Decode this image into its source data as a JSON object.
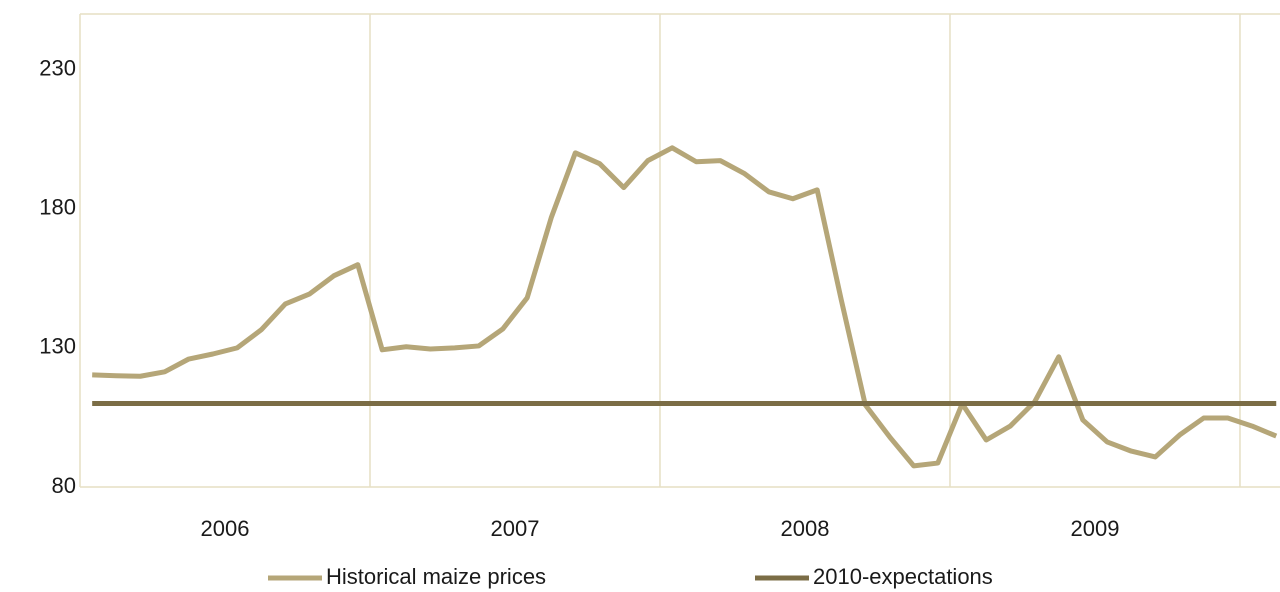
{
  "chart_data": {
    "type": "line",
    "categories": [
      "2006",
      "2007",
      "2008",
      "2009"
    ],
    "x": [
      2006.042,
      2006.125,
      2006.208,
      2006.292,
      2006.375,
      2006.458,
      2006.542,
      2006.625,
      2006.708,
      2006.792,
      2006.875,
      2006.958,
      2007.042,
      2007.125,
      2007.208,
      2007.292,
      2007.375,
      2007.458,
      2007.542,
      2007.625,
      2007.708,
      2007.792,
      2007.875,
      2007.958,
      2008.042,
      2008.125,
      2008.208,
      2008.292,
      2008.375,
      2008.458,
      2008.542,
      2008.625,
      2008.708,
      2008.792,
      2008.875,
      2008.958,
      2009.042,
      2009.125,
      2009.208,
      2009.292,
      2009.375,
      2009.458,
      2009.542,
      2009.625,
      2009.708,
      2009.792,
      2009.875,
      2009.958,
      2010.042,
      2010.125
    ],
    "series": [
      {
        "name": "Historical maize prices",
        "color": "#b5a678",
        "values": [
          120.3,
          120,
          119.8,
          121.4,
          126,
          127.8,
          130,
          136.5,
          145.8,
          149.4,
          155.9,
          159.9,
          129.3,
          130.4,
          129.6,
          130,
          130.7,
          136.8,
          148,
          176.8,
          200.1,
          196.2,
          187.6,
          197.3,
          201.9,
          196.9,
          197.3,
          192.6,
          186.1,
          183.6,
          186.8,
          147.3,
          109.5,
          98,
          87.6,
          88.6,
          109.9,
          96.9,
          101.9,
          110.6,
          126.8,
          104.1,
          96.2,
          92.9,
          90.8,
          98.7,
          104.8,
          104.8,
          101.9,
          98.3
        ]
      },
      {
        "name": "2010-expectations",
        "color": "#7b6d46",
        "values": [
          110,
          110,
          110,
          110,
          110,
          110,
          110,
          110,
          110,
          110,
          110,
          110,
          110,
          110,
          110,
          110,
          110,
          110,
          110,
          110,
          110,
          110,
          110,
          110,
          110,
          110,
          110,
          110,
          110,
          110,
          110,
          110,
          110,
          110,
          110,
          110,
          110,
          110,
          110,
          110,
          110,
          110,
          110,
          110,
          110,
          110,
          110,
          110,
          110,
          110
        ]
      }
    ],
    "xlim": [
      2006,
      2010.138
    ],
    "xticks": [
      2006,
      2007,
      2008,
      2009,
      2010
    ],
    "ylim": [
      80,
      250
    ],
    "yticks": [
      80,
      130,
      180,
      230
    ],
    "grid": true,
    "legend": "bottom"
  }
}
